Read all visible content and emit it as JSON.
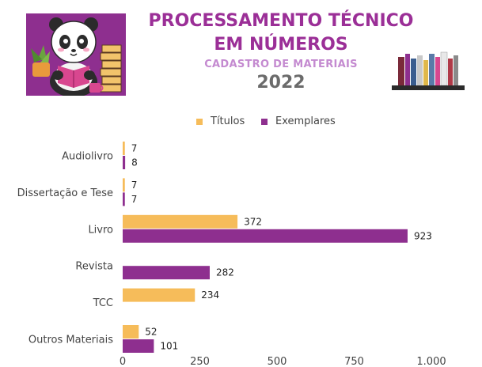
{
  "header": {
    "title_line1": "PROCESSAMENTO TÉCNICO",
    "title_line2": "EM NÚMEROS",
    "subtitle": "CADASTRO DE MATERIAIS",
    "year": "2022"
  },
  "chart_data": {
    "type": "bar",
    "orientation": "horizontal",
    "categories": [
      "Audiolivro",
      "Dissertação e Tese",
      "Livro",
      "Revista",
      "TCC",
      "Outros Materiais"
    ],
    "series": [
      {
        "name": "Títulos",
        "color": "#f6bc5a",
        "values": [
          7,
          7,
          372,
          null,
          234,
          52
        ]
      },
      {
        "name": "Exemplares",
        "color": "#8e2f8f",
        "values": [
          8,
          7,
          923,
          282,
          null,
          101
        ]
      }
    ],
    "xlim": [
      0,
      1000
    ],
    "xticks": [
      0,
      250,
      500,
      750,
      1000
    ],
    "xtick_labels": [
      "0",
      "250",
      "500",
      "750",
      "1.000"
    ],
    "legend_position": "top-center",
    "grid": false
  }
}
